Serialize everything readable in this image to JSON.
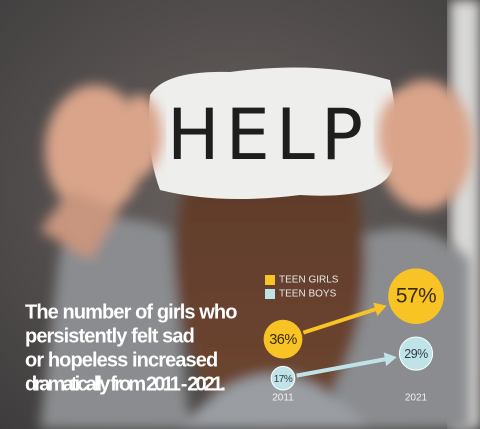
{
  "chart_data": {
    "type": "bubble",
    "background": {
      "sign_text": "HELP"
    },
    "annotation": [
      "The number of girls who",
      "persistently felt sad",
      "or hopeless increased",
      "dramatically from 2011 - 2021."
    ],
    "categories": [
      "2011",
      "2021"
    ],
    "series": [
      {
        "name": "TEEN GIRLS",
        "color": "#f7c325",
        "text_color": "#3a2a00",
        "values": [
          36,
          57
        ],
        "value_labels": [
          "36%",
          "57%"
        ]
      },
      {
        "name": "TEEN BOYS",
        "color": "#bfe3e6",
        "text_color": "#2e3f44",
        "values": [
          17,
          29
        ],
        "value_labels": [
          "17%",
          "29%"
        ]
      }
    ]
  }
}
